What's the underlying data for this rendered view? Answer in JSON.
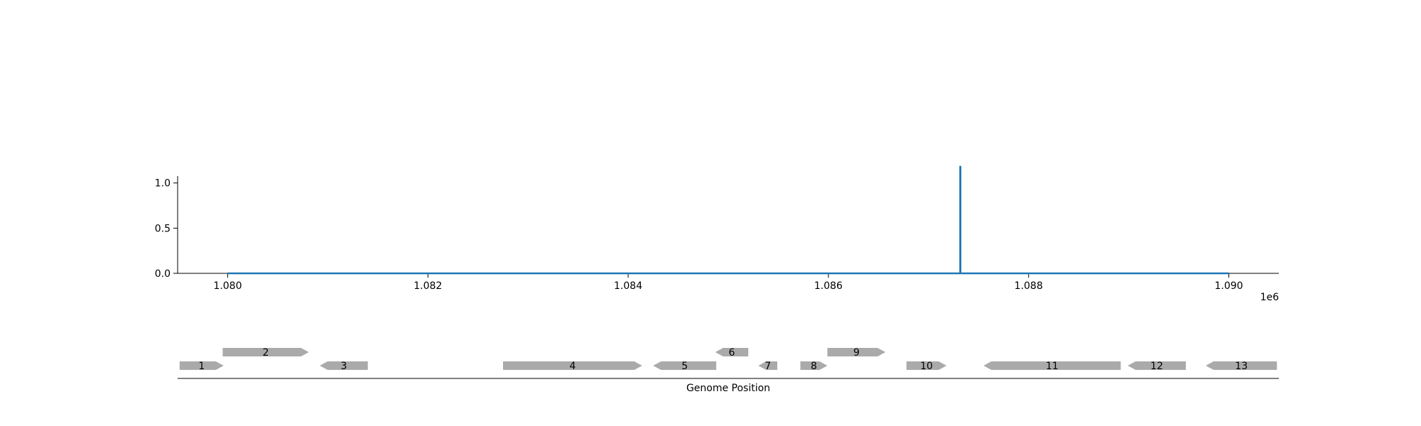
{
  "chart_data": [
    {
      "type": "line",
      "title": "",
      "xlabel": "",
      "ylabel": "",
      "xlim": [
        1079500,
        1090500
      ],
      "ylim": [
        0,
        1.32
      ],
      "x_offset_label": "1e6",
      "x_ticks": [
        1080000,
        1082000,
        1084000,
        1086000,
        1088000,
        1090000
      ],
      "x_tick_labels": [
        "1.080",
        "1.082",
        "1.084",
        "1.086",
        "1.088",
        "1.090"
      ],
      "y_ticks": [
        0,
        0.5,
        1.0
      ],
      "y_tick_labels": [
        "0.0",
        "0.5",
        "1.0"
      ],
      "grid": false,
      "series": [
        {
          "color": "#1f77b4",
          "x": [
            1080000,
            1087317,
            1087317,
            1087319,
            1087319,
            1090000
          ],
          "y": [
            0,
            0,
            1.18,
            1.18,
            0,
            0
          ]
        }
      ]
    },
    {
      "type": "gene-track",
      "xlabel": "Genome Position",
      "xlim": [
        1079500,
        1090500
      ],
      "feature_color": "#aaaaaa",
      "features": [
        {
          "label": "1",
          "start": 1079520,
          "end": 1079960,
          "strand": "+",
          "row": 0
        },
        {
          "label": "2",
          "start": 1079950,
          "end": 1080810,
          "strand": "+",
          "row": 1
        },
        {
          "label": "3",
          "start": 1080920,
          "end": 1081400,
          "strand": "-",
          "row": 0
        },
        {
          "label": "4",
          "start": 1082750,
          "end": 1084140,
          "strand": "+",
          "row": 0
        },
        {
          "label": "5",
          "start": 1084250,
          "end": 1084880,
          "strand": "-",
          "row": 0
        },
        {
          "label": "6",
          "start": 1084870,
          "end": 1085200,
          "strand": "-",
          "row": 1
        },
        {
          "label": "7",
          "start": 1085300,
          "end": 1085490,
          "strand": "-",
          "row": 0
        },
        {
          "label": "8",
          "start": 1085720,
          "end": 1085990,
          "strand": "+",
          "row": 0
        },
        {
          "label": "9",
          "start": 1085990,
          "end": 1086570,
          "strand": "+",
          "row": 1
        },
        {
          "label": "10",
          "start": 1086780,
          "end": 1087180,
          "strand": "+",
          "row": 0
        },
        {
          "label": "11",
          "start": 1087550,
          "end": 1088920,
          "strand": "-",
          "row": 0
        },
        {
          "label": "12",
          "start": 1088990,
          "end": 1089570,
          "strand": "-",
          "row": 0
        },
        {
          "label": "13",
          "start": 1089770,
          "end": 1090480,
          "strand": "-",
          "row": 0
        }
      ]
    }
  ]
}
